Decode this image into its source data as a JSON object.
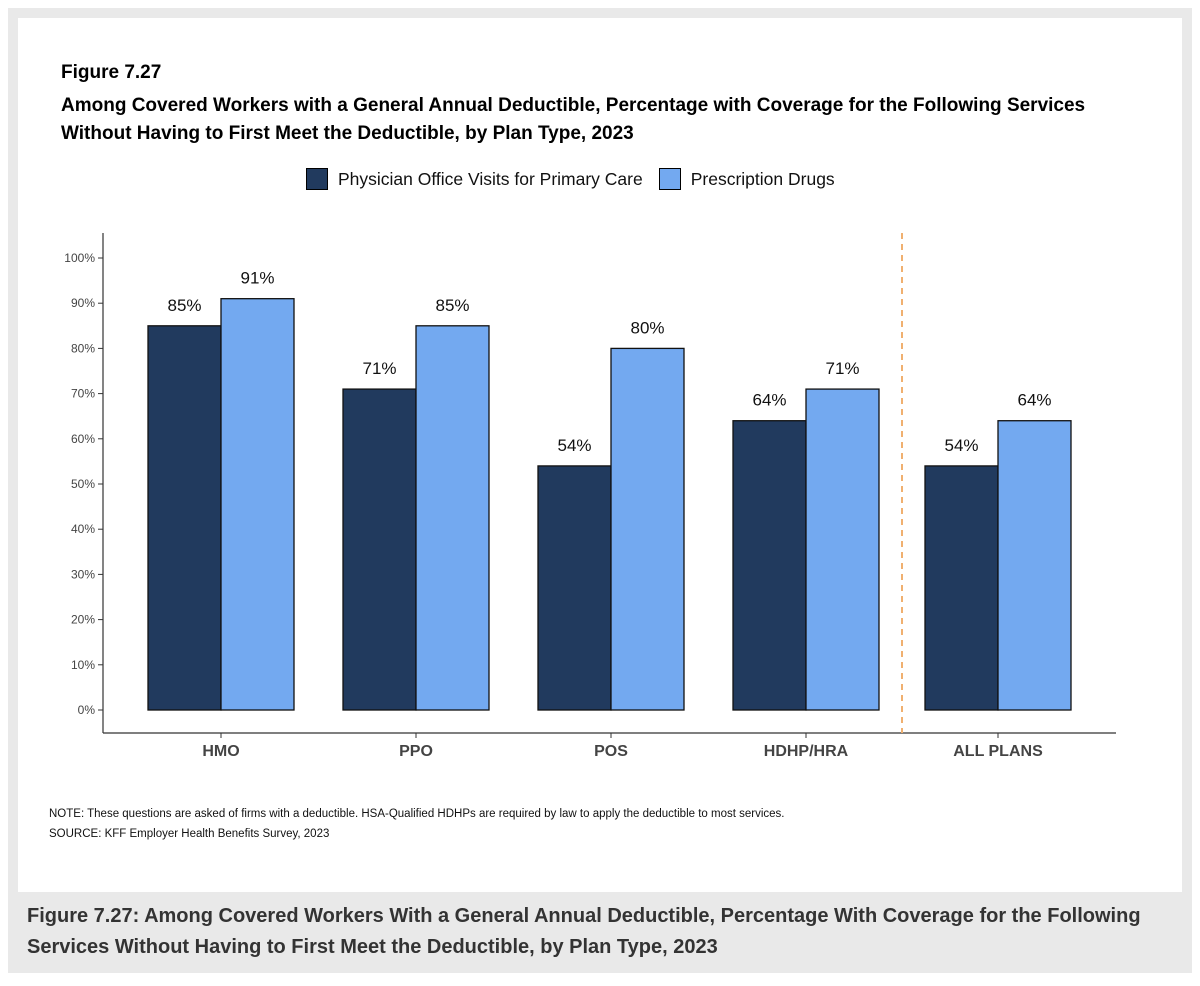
{
  "figure": {
    "number": "Figure 7.27",
    "title": "Among Covered Workers with a General Annual Deductible, Percentage with Coverage for the Following Services Without Having to First Meet the Deductible, by Plan Type, 2023",
    "note": "NOTE: These questions are asked of firms with a deductible. HSA-Qualified HDHPs are required by law to apply the deductible to most services.",
    "source": "SOURCE: KFF Employer Health Benefits Survey, 2023",
    "caption": "Figure 7.27: Among Covered Workers With a General Annual Deductible, Percentage With Coverage for the Following Services Without Having to First Meet the Deductible, by Plan Type, 2023"
  },
  "chart_data": {
    "type": "bar",
    "title": "Among Covered Workers with a General Annual Deductible, Percentage with Coverage for the Following Services Without Having to First Meet the Deductible, by Plan Type, 2023",
    "categories": [
      "HMO",
      "PPO",
      "POS",
      "HDHP/HRA",
      "ALL PLANS"
    ],
    "series": [
      {
        "name": "Physician Office Visits for Primary Care",
        "values": [
          85,
          71,
          54,
          64,
          54
        ],
        "color": "#213a5e"
      },
      {
        "name": "Prescription Drugs",
        "values": [
          91,
          85,
          80,
          71,
          64
        ],
        "color": "#73a9f0"
      }
    ],
    "value_suffix": "%",
    "ylim": [
      0,
      100
    ],
    "yticks": [
      "0%",
      "10%",
      "20%",
      "30%",
      "40%",
      "50%",
      "60%",
      "70%",
      "80%",
      "90%",
      "100%"
    ],
    "xlabel": "",
    "ylabel": "",
    "legend_position": "top",
    "grid": false,
    "separator_color": "#f0b070"
  }
}
